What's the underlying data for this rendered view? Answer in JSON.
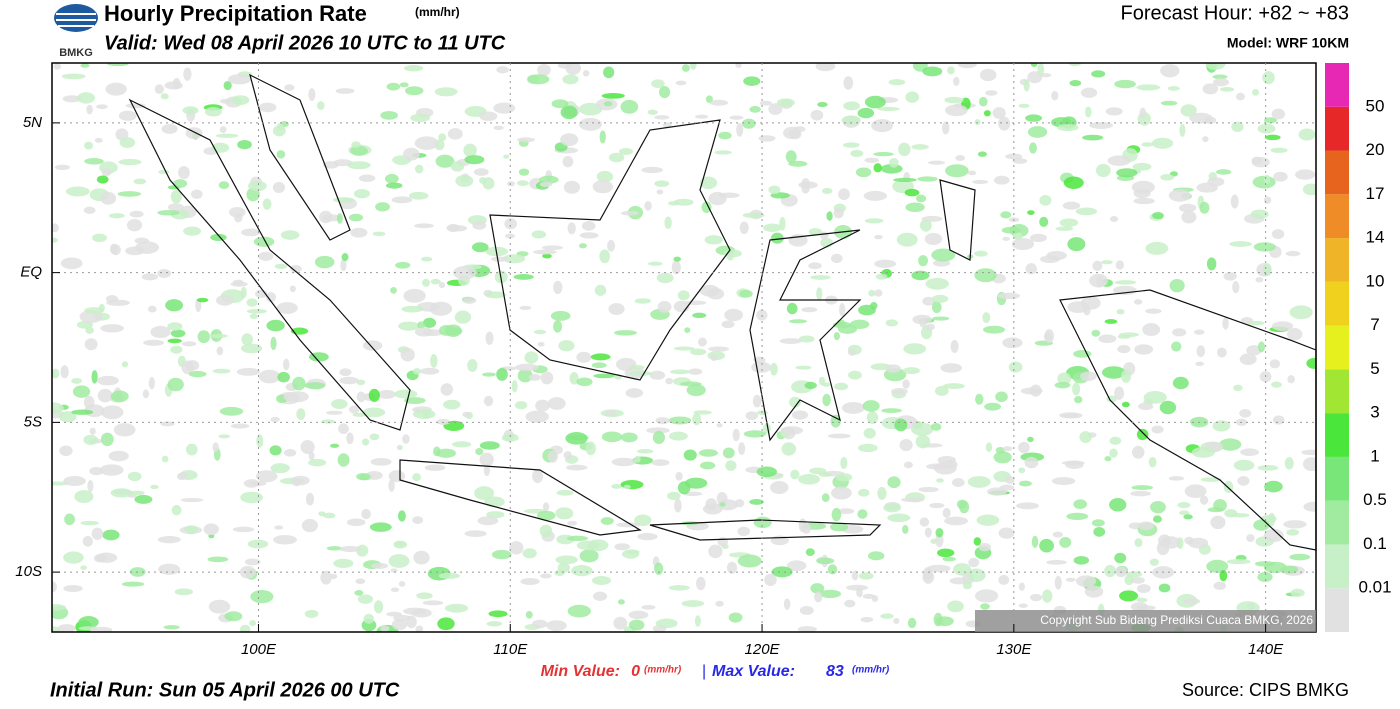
{
  "header": {
    "logo": "BMKG",
    "title": "Hourly Precipitation Rate",
    "title_unit": "(mm/hr)",
    "valid": "Valid: Wed 08 April 2026 10 UTC to 11 UTC",
    "forecast_hour": "Forecast Hour: +82 ~ +83",
    "model": "Model: WRF 10KM"
  },
  "map": {
    "xlim": [
      91.8,
      142
    ],
    "ylim": [
      -12,
      7
    ],
    "xticks": [
      {
        "value": 100,
        "label": "100E"
      },
      {
        "value": 110,
        "label": "110E"
      },
      {
        "value": 120,
        "label": "120E"
      },
      {
        "value": 130,
        "label": "130E"
      },
      {
        "value": 140,
        "label": "140E"
      }
    ],
    "yticks": [
      {
        "value": 5,
        "label": "5N"
      },
      {
        "value": 0,
        "label": "EQ"
      },
      {
        "value": -5,
        "label": "5S"
      },
      {
        "value": -10,
        "label": "10S"
      }
    ],
    "grid": true,
    "copyright": "Copyright Sub Bidang Prediksi Cuaca BMKG, 2026"
  },
  "colorbar": {
    "levels": [
      0.01,
      0.1,
      0.5,
      1,
      3,
      5,
      7,
      10,
      14,
      17,
      20,
      50
    ],
    "colors": [
      "#e1e1e1",
      "#c8f0c8",
      "#a0eba0",
      "#78e678",
      "#4be63c",
      "#a0e632",
      "#e6f01e",
      "#f0d21e",
      "#f0b428",
      "#f08c28",
      "#e6641e",
      "#e62828",
      "#e628b4"
    ]
  },
  "footer": {
    "min_label": "Min Value:",
    "min_value": 0,
    "min_unit": "(mm/hr)",
    "separator": "|",
    "max_label": "Max Value:",
    "max_value": 83,
    "max_unit": "(mm/hr)",
    "initial_run": "Initial Run: Sun 05 April 2026 00 UTC",
    "source": "Source: CIPS BMKG"
  }
}
